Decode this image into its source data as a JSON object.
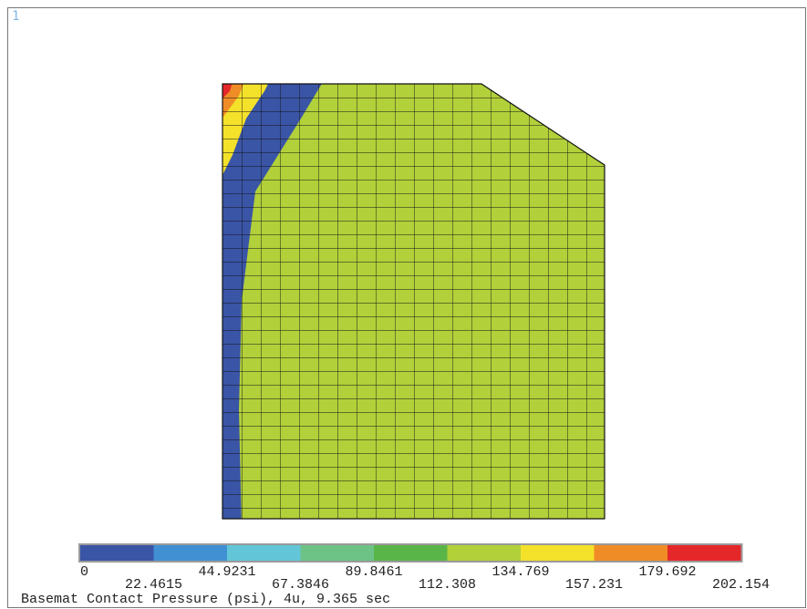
{
  "window": {
    "number": "1"
  },
  "caption": "Basemat Contact Pressure (psi), 4u, 9.365 sec",
  "legend": {
    "boundaries": [
      "0",
      "22.4615",
      "44.9231",
      "67.3846",
      "89.8461",
      "112.308",
      "134.769",
      "157.231",
      "179.692",
      "202.154"
    ],
    "colors": [
      "#3a55a6",
      "#4190d4",
      "#62c6d8",
      "#6dc286",
      "#5ab548",
      "#b2d03a",
      "#f4e12a",
      "#f08c26",
      "#e42729"
    ]
  },
  "contour": {
    "variable": "Basemat Contact Pressure",
    "units": "psi",
    "min": 0,
    "max": 202.154,
    "bands": 9
  }
}
